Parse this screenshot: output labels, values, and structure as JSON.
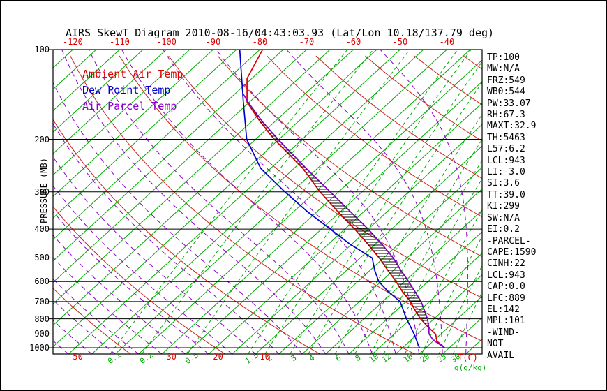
{
  "title": "AIRS SkewT Diagram 2010-08-16/04:43:03.93 (Lat/Lon 10.18/137.79 deg)",
  "colors": {
    "isotherm_green": "#00aa00",
    "adiabat_red": "#cc2222",
    "moist_purple": "#8800cc",
    "ambient_red": "#dd0000",
    "dewpoint_blue": "#0000cc",
    "parcel_purple": "#8800cc",
    "axis_black": "#000000"
  },
  "axes": {
    "pressure_label": "PRESSURE (MB)",
    "pressure_ticks": [
      100,
      200,
      300,
      400,
      500,
      600,
      700,
      800,
      900,
      1000
    ],
    "top_temp_ticks": [
      -120,
      -110,
      -100,
      -90,
      -80,
      -70,
      -60,
      -50,
      -40
    ],
    "bottom_temp_ticks": [
      -50,
      -30,
      -20,
      -10
    ],
    "bottom_temp_unit": "T(C)",
    "mixing_ratio_ticks": [
      0.1,
      0.2,
      0.5,
      1.5,
      2,
      3,
      4,
      6,
      8,
      10,
      12,
      16,
      20,
      25,
      30
    ],
    "mixing_ratio_unit": "g(g/kg)"
  },
  "legend": [
    {
      "label": "Ambient Air Temp",
      "color": "#dd0000"
    },
    {
      "label": "Dew Point Temp",
      "color": "#0000cc"
    },
    {
      "label": "Air Parcel Temp",
      "color": "#8800cc"
    }
  ],
  "stats_panel": [
    "TP:100",
    "MW:N/A",
    "FRZ:549",
    "WB0:544",
    "PW:33.07",
    "RH:67.3",
    "MAXT:32.9",
    "TH:5463",
    "L57:6.2",
    "LCL:943",
    "LI:-3.0",
    "SI:3.6",
    "TT:39.0",
    "KI:299",
    "SW:N/A",
    "EI:0.2",
    "-PARCEL-",
    "CAPE:1590",
    "CINH:22",
    "LCL:943",
    "CAP:0.0",
    "LFC:889",
    "EL:142",
    "MPL:101",
    "-WIND-",
    "NOT",
    "AVAIL"
  ],
  "chart_data": {
    "type": "line",
    "projection": "skew-t-log-p",
    "title": "AIRS SkewT Diagram 2010-08-16/04:43:03.93 (Lat/Lon 10.18/137.79 deg)",
    "xlabel": "T(C)",
    "ylabel": "PRESSURE (MB)",
    "pressure_range_mb": [
      100,
      1050
    ],
    "grid": {
      "isotherms_step_C": 5,
      "dry_adiabats_step_K": 20,
      "moist_adiabats_step_C": 5
    },
    "legend_position": "top-left-inside",
    "series": [
      {
        "name": "Ambient Air Temp",
        "color": "#dd0000",
        "points_p_t": [
          [
            1000,
            29.0
          ],
          [
            950,
            25.8
          ],
          [
            900,
            23.9
          ],
          [
            850,
            20.5
          ],
          [
            800,
            17.1
          ],
          [
            750,
            14.0
          ],
          [
            700,
            10.9
          ],
          [
            650,
            7.0
          ],
          [
            600,
            3.2
          ],
          [
            550,
            -1.2
          ],
          [
            500,
            -5.9
          ],
          [
            450,
            -11.5
          ],
          [
            400,
            -17.9
          ],
          [
            350,
            -25.5
          ],
          [
            300,
            -34.0
          ],
          [
            250,
            -43.2
          ],
          [
            200,
            -56.0
          ],
          [
            175,
            -63.0
          ],
          [
            150,
            -70.5
          ],
          [
            125,
            -76.0
          ],
          [
            100,
            -79.4
          ]
        ]
      },
      {
        "name": "Dew Point Temp",
        "color": "#0000cc",
        "points_p_t": [
          [
            1000,
            23.6
          ],
          [
            950,
            21.5
          ],
          [
            900,
            19.3
          ],
          [
            850,
            16.8
          ],
          [
            800,
            14.1
          ],
          [
            750,
            11.5
          ],
          [
            700,
            8.7
          ],
          [
            650,
            4.0
          ],
          [
            600,
            -0.5
          ],
          [
            550,
            -4.0
          ],
          [
            500,
            -7.4
          ],
          [
            450,
            -15.3
          ],
          [
            400,
            -23.1
          ],
          [
            350,
            -32.0
          ],
          [
            300,
            -41.5
          ],
          [
            250,
            -52.2
          ],
          [
            200,
            -61.9
          ],
          [
            150,
            -71.3
          ],
          [
            100,
            -84.3
          ]
        ]
      },
      {
        "name": "Air Parcel Temp",
        "color": "#8800cc",
        "points_p_t": [
          [
            1000,
            29.0
          ],
          [
            943,
            24.8
          ],
          [
            900,
            22.5
          ],
          [
            850,
            20.7
          ],
          [
            800,
            18.6
          ],
          [
            750,
            16.0
          ],
          [
            700,
            13.2
          ],
          [
            650,
            9.7
          ],
          [
            600,
            5.9
          ],
          [
            550,
            1.6
          ],
          [
            500,
            -2.9
          ],
          [
            450,
            -8.5
          ],
          [
            400,
            -15.0
          ],
          [
            350,
            -22.8
          ],
          [
            300,
            -31.8
          ],
          [
            250,
            -42.5
          ],
          [
            200,
            -55.2
          ],
          [
            175,
            -62.5
          ],
          [
            150,
            -70.3
          ],
          [
            140,
            -73.5
          ]
        ]
      }
    ],
    "cape_hatch": {
      "between": [
        "Air Parcel Temp",
        "Ambient Air Temp"
      ],
      "from_mb": 880,
      "to_mb": 150
    }
  }
}
